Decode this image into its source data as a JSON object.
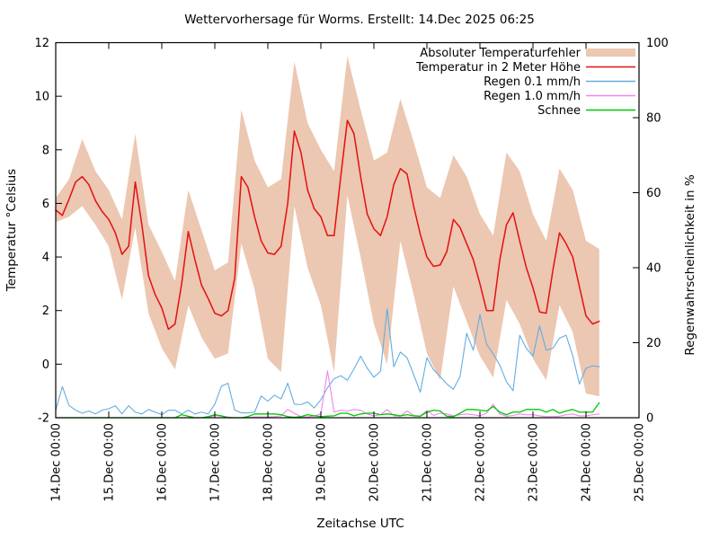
{
  "title": "Wettervorhersage für Worms. Erstellt: 14.Dec 2025 06:25",
  "axes": {
    "x": {
      "label": "Zeitachse UTC",
      "tick_labels": [
        "14.Dec 00:00",
        "15.Dec 00:00",
        "16.Dec 00:00",
        "17.Dec 00:00",
        "18.Dec 00:00",
        "19.Dec 00:00",
        "20.Dec 00:00",
        "21.Dec 00:00",
        "22.Dec 00:00",
        "23.Dec 00:00",
        "24.Dec 00:00",
        "25.Dec 00:00"
      ],
      "range_days": [
        0,
        11
      ]
    },
    "y_left": {
      "label": "Temperatur °Celsius",
      "ticks": [
        -2,
        0,
        2,
        4,
        6,
        8,
        10,
        12
      ],
      "range": [
        -2,
        12
      ]
    },
    "y_right": {
      "label": "Regenwahrscheinlichkeit in %",
      "ticks": [
        0,
        20,
        40,
        60,
        80,
        100
      ],
      "range": [
        0,
        100
      ]
    }
  },
  "legend": [
    {
      "label": "Absoluter Temperaturfehler",
      "swatch": "band",
      "color": "#ecc7b1"
    },
    {
      "label": "Temperatur in 2 Meter Höhe",
      "swatch": "line",
      "color": "#e41010"
    },
    {
      "label": "Regen 0.1 mm/h",
      "swatch": "line",
      "color": "#62ade0"
    },
    {
      "label": "Regen 1.0 mm/h",
      "swatch": "line",
      "color": "#ee86ee"
    },
    {
      "label": "Schnee",
      "swatch": "line",
      "color": "#00c800"
    }
  ],
  "chart_data": {
    "type": "line",
    "title": "Wettervorhersage für Worms. Erstellt: 14.Dec 2025 06:25",
    "xlabel": "Zeitachse UTC",
    "ylabel_left": "Temperatur °Celsius",
    "ylabel_right": "Regenwahrscheinlichkeit in %",
    "x_unit": "days since 14.Dec 00:00 UTC",
    "xlim_days": [
      0,
      11
    ],
    "ylim_left": [
      -2,
      12
    ],
    "ylim_right": [
      0,
      100
    ],
    "grid": false,
    "legend_position": "top-right",
    "series": [
      {
        "name": "Absoluter Temperaturfehler",
        "kind": "band",
        "axis": "left",
        "color": "#ecc7b1",
        "t_start": 0,
        "t_step": 0.25,
        "upper": [
          6.2,
          6.9,
          8.4,
          7.2,
          6.5,
          5.4,
          8.6,
          5.2,
          4.2,
          3.1,
          6.5,
          5.0,
          3.5,
          3.8,
          9.5,
          7.6,
          6.6,
          6.9,
          11.3,
          9.0,
          8.0,
          7.2,
          11.5,
          9.5,
          7.6,
          7.9,
          9.9,
          8.3,
          6.6,
          6.2,
          7.8,
          7.0,
          5.6,
          4.8,
          7.9,
          7.2,
          5.6,
          4.6,
          7.3,
          6.5,
          4.6,
          4.3
        ],
        "lower": [
          5.3,
          5.5,
          5.9,
          5.2,
          4.4,
          2.4,
          5.1,
          1.9,
          0.6,
          -0.2,
          2.2,
          1.0,
          0.2,
          0.4,
          4.5,
          2.8,
          0.2,
          -0.3,
          5.9,
          3.6,
          2.2,
          -0.3,
          6.3,
          4.0,
          1.5,
          0.0,
          4.6,
          2.6,
          0.4,
          -0.6,
          2.9,
          1.6,
          0.3,
          -0.5,
          2.4,
          1.5,
          0.2,
          -0.6,
          2.2,
          1.2,
          -1.1,
          -1.2
        ]
      },
      {
        "name": "Temperatur in 2 Meter Höhe",
        "kind": "line",
        "axis": "left",
        "color": "#e41010",
        "width": 1.5,
        "t_start": 0,
        "t_step": 0.125,
        "values": [
          5.75,
          5.55,
          6.15,
          6.8,
          7.0,
          6.7,
          6.1,
          5.7,
          5.4,
          4.9,
          4.1,
          4.4,
          6.8,
          5.2,
          3.3,
          2.6,
          2.1,
          1.3,
          1.5,
          3.0,
          4.95,
          3.9,
          2.95,
          2.45,
          1.9,
          1.8,
          2.0,
          3.2,
          7.0,
          6.6,
          5.5,
          4.6,
          4.15,
          4.1,
          4.4,
          6.0,
          8.7,
          7.9,
          6.5,
          5.8,
          5.5,
          4.8,
          4.8,
          7.0,
          9.1,
          8.6,
          7.0,
          5.6,
          5.05,
          4.8,
          5.5,
          6.7,
          7.3,
          7.1,
          5.9,
          4.85,
          4.0,
          3.65,
          3.7,
          4.2,
          5.4,
          5.1,
          4.5,
          3.9,
          3.0,
          2.0,
          2.0,
          3.9,
          5.2,
          5.65,
          4.6,
          3.6,
          2.85,
          1.95,
          1.9,
          3.5,
          4.9,
          4.5,
          4.0,
          2.9,
          1.8,
          1.5,
          1.6
        ]
      },
      {
        "name": "Regen 0.1 mm/h",
        "kind": "line",
        "axis": "right",
        "color": "#62ade0",
        "width": 1.1,
        "t_start": 0,
        "t_step": 0.125,
        "values": [
          2.0,
          8.3,
          3.3,
          2.0,
          1.2,
          1.8,
          1.0,
          2.0,
          2.4,
          3.2,
          1.0,
          3.2,
          1.5,
          1.0,
          2.2,
          1.5,
          0.8,
          2.0,
          2.0,
          1.0,
          2.0,
          1.0,
          1.5,
          1.0,
          3.6,
          8.4,
          9.2,
          2.0,
          1.3,
          1.3,
          1.5,
          5.8,
          4.4,
          6.0,
          5.0,
          9.2,
          3.6,
          3.5,
          4.2,
          2.6,
          4.8,
          8.0,
          10.4,
          11.2,
          10.0,
          13.0,
          16.4,
          13.2,
          10.8,
          12.4,
          29.0,
          13.6,
          17.5,
          16.0,
          11.5,
          6.8,
          16.0,
          12.8,
          11.0,
          9.0,
          7.6,
          11.0,
          22.5,
          18.0,
          27.5,
          19.6,
          17.0,
          14.0,
          9.6,
          7.2,
          22.0,
          18.5,
          16.4,
          24.5,
          18.0,
          18.5,
          21.2,
          22.0,
          16.5,
          9.0,
          13.2,
          13.8,
          13.6
        ]
      },
      {
        "name": "Regen 1.0 mm/h",
        "kind": "line",
        "axis": "right",
        "color": "#ee86ee",
        "width": 1.1,
        "t_start": 0,
        "t_step": 0.125,
        "values": [
          0,
          0,
          0,
          0,
          0,
          0,
          0,
          0,
          0,
          0,
          0,
          0,
          0,
          0,
          0,
          0,
          0,
          0,
          0,
          0,
          0,
          0,
          0,
          0,
          0.6,
          0.4,
          0.2,
          0,
          0,
          0,
          0.2,
          0.2,
          0.2,
          0.3,
          0.5,
          2.2,
          1.2,
          0.3,
          0.2,
          0.5,
          1.0,
          12.5,
          1.5,
          2.0,
          1.8,
          2.2,
          2.0,
          1.0,
          0.5,
          0.8,
          2.2,
          0.5,
          0.4,
          1.8,
          0.6,
          0.4,
          2.0,
          0.6,
          1.2,
          1.0,
          0.5,
          0.8,
          1.0,
          0.8,
          0.5,
          1.2,
          3.6,
          1.0,
          0.4,
          0.6,
          1.0,
          0.8,
          0.8,
          0.5,
          0.3,
          0.3,
          0.4,
          0.8,
          1.0,
          0.5,
          0.5,
          0.8,
          1.0
        ]
      },
      {
        "name": "Schnee",
        "kind": "line",
        "axis": "right",
        "color": "#00c800",
        "width": 1.3,
        "t_start": 0,
        "t_step": 0.125,
        "values": [
          0,
          0,
          0,
          0,
          0,
          0,
          0,
          0,
          0,
          0,
          0,
          0,
          0,
          0,
          0,
          0,
          0,
          0,
          0,
          0.8,
          0.4,
          0,
          0,
          0.3,
          0.8,
          0.5,
          0,
          0,
          0,
          0.3,
          1.0,
          1.0,
          1.0,
          1.0,
          0.8,
          0.3,
          0.1,
          0.3,
          0.8,
          0.5,
          0.3,
          0.4,
          0.5,
          1.2,
          1.2,
          0.5,
          1.0,
          1.2,
          1.2,
          0.8,
          1.0,
          0.8,
          0.5,
          0.8,
          0.5,
          0.4,
          1.5,
          2.0,
          1.8,
          0.4,
          0.3,
          1.2,
          2.2,
          2.2,
          2.0,
          1.8,
          3.0,
          1.5,
          0.8,
          1.5,
          1.5,
          2.2,
          2.2,
          2.2,
          1.5,
          2.2,
          1.2,
          1.8,
          2.2,
          1.5,
          1.5,
          1.5,
          4.0
        ]
      }
    ]
  }
}
